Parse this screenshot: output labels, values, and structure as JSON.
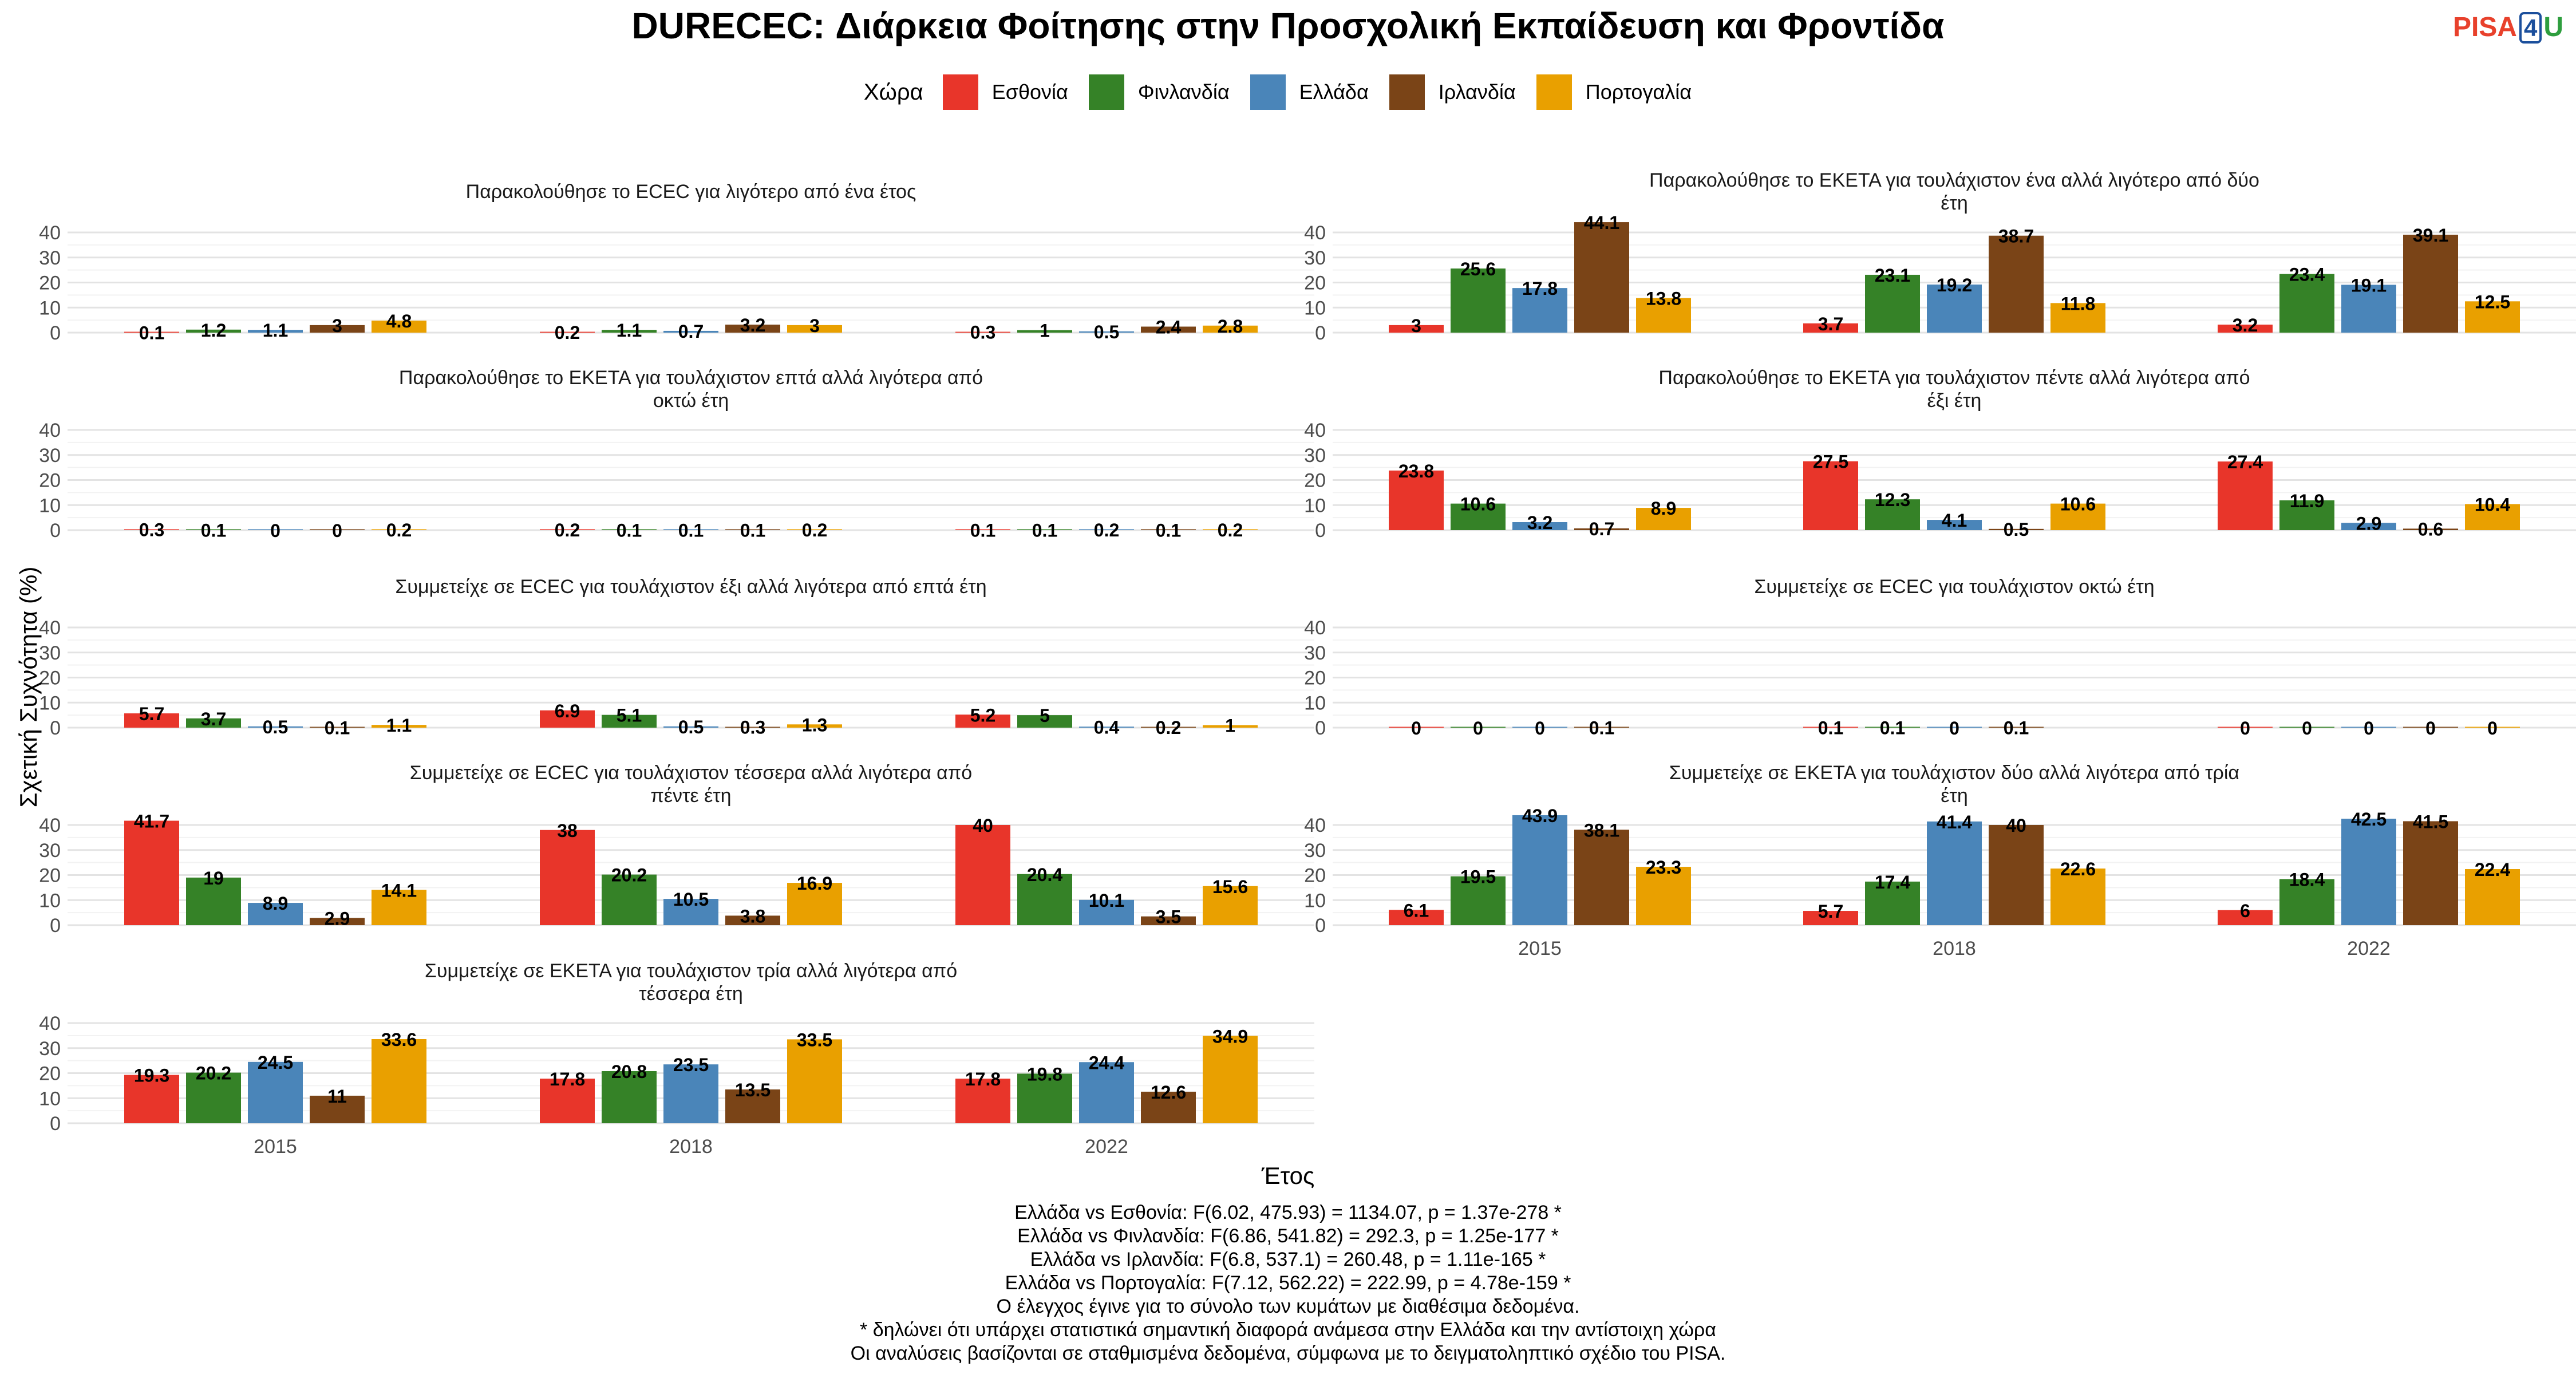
{
  "title": "DURECEC: Διάρκεια Φοίτησης στην Προσχολική Εκπαίδευση και Φροντίδα",
  "logo": {
    "part1": "PISA",
    "part2": "4",
    "part3": "U"
  },
  "legend_title": "Χώρα",
  "ylabel": "Σχετική Συχνότητα (%)",
  "xlabel": "Έτος",
  "notes": [
    "Ελλάδα vs Εσθονία: F(6.02, 475.93) = 1134.07, p = 1.37e-278 *",
    "Ελλάδα vs Φινλανδία: F(6.86, 541.82) = 292.3, p = 1.25e-177 *",
    "Ελλάδα vs Ιρλανδία: F(6.8, 537.1) = 260.48, p = 1.11e-165 *",
    "Ελλάδα vs Πορτογαλία: F(7.12, 562.22) = 222.99, p = 4.78e-159 *",
    "Ο έλεγχος έγινε για το σύνολο των κυμάτων με διαθέσιμα δεδομένα.",
    "* δηλώνει ότι υπάρχει στατιστικά σημαντική διαφορά ανάμεσα στην Ελλάδα και την αντίστοιχη χώρα",
    "Οι αναλύσεις βασίζονται σε σταθμισμένα δεδομένα, σύμφωνα με το δειγματοληπτικό σχέδιο του PISA."
  ],
  "chart_data": {
    "type": "bar",
    "years": [
      "2015",
      "2018",
      "2022"
    ],
    "y_ticks": [
      0,
      10,
      20,
      30,
      40
    ],
    "ylim": [
      0,
      45
    ],
    "series": [
      {
        "name": "Εσθονία",
        "color": "#e8352a"
      },
      {
        "name": "Φινλανδία",
        "color": "#358227"
      },
      {
        "name": "Ελλάδα",
        "color": "#4a85b9"
      },
      {
        "name": "Ιρλανδία",
        "color": "#7a4417"
      },
      {
        "name": "Πορτογαλία",
        "color": "#e9a000"
      }
    ],
    "panels": [
      {
        "title": [
          "Παρακολούθησε το ECEC για λιγότερο από ένα έτος"
        ],
        "values": [
          [
            0.1,
            1.2,
            1.1,
            3,
            4.8
          ],
          [
            0.2,
            1.1,
            0.7,
            3.2,
            3
          ],
          [
            0.3,
            1,
            0.5,
            2.4,
            2.8
          ]
        ]
      },
      {
        "title": [
          "Παρακολούθησε το ΕΚΕΤΑ για τουλάχιστον ένα αλλά λιγότερο από δύο",
          "έτη"
        ],
        "values": [
          [
            3,
            25.6,
            17.8,
            44.1,
            13.8
          ],
          [
            3.7,
            23.1,
            19.2,
            38.7,
            11.8
          ],
          [
            3.2,
            23.4,
            19.1,
            39.1,
            12.5
          ]
        ]
      },
      {
        "title": [
          "Παρακολούθησε το ΕΚΕΤΑ για τουλάχιστον επτά αλλά λιγότερα από",
          "οκτώ έτη"
        ],
        "values": [
          [
            0.3,
            0.1,
            0,
            0,
            0.2
          ],
          [
            0.2,
            0.1,
            0.1,
            0.1,
            0.2
          ],
          [
            0.1,
            0.1,
            0.2,
            0.1,
            0.2
          ]
        ]
      },
      {
        "title": [
          "Παρακολούθησε το ΕΚΕΤΑ για τουλάχιστον πέντε αλλά λιγότερα από",
          "έξι έτη"
        ],
        "values": [
          [
            23.8,
            10.6,
            3.2,
            0.7,
            8.9
          ],
          [
            27.5,
            12.3,
            4.1,
            0.5,
            10.6
          ],
          [
            27.4,
            11.9,
            2.9,
            0.6,
            10.4
          ]
        ]
      },
      {
        "title": [
          "Συμμετείχε σε ECEC για τουλάχιστον έξι αλλά λιγότερα από επτά έτη"
        ],
        "values": [
          [
            5.7,
            3.7,
            0.5,
            0.1,
            1.1
          ],
          [
            6.9,
            5.1,
            0.5,
            0.3,
            1.3
          ],
          [
            5.2,
            5,
            0.4,
            0.2,
            1
          ]
        ]
      },
      {
        "title": [
          "Συμμετείχε σε ECEC για τουλάχιστον οκτώ έτη"
        ],
        "values": [
          [
            0,
            0,
            0,
            0.1,
            null
          ],
          [
            0.1,
            0.1,
            0,
            0.1,
            null
          ],
          [
            0,
            0,
            0,
            0,
            0
          ]
        ]
      },
      {
        "title": [
          "Συμμετείχε σε ECEC για τουλάχιστον τέσσερα αλλά λιγότερα από",
          "πέντε έτη"
        ],
        "values": [
          [
            41.7,
            19,
            8.9,
            2.9,
            14.1
          ],
          [
            38,
            20.2,
            10.5,
            3.8,
            16.9
          ],
          [
            40,
            20.4,
            10.1,
            3.5,
            15.6
          ]
        ]
      },
      {
        "title": [
          "Συμμετείχε σε ΕΚΕΤΑ για τουλάχιστον δύο αλλά λιγότερα από τρία",
          "έτη"
        ],
        "values": [
          [
            6.1,
            19.5,
            43.9,
            38.1,
            23.3
          ],
          [
            5.7,
            17.4,
            41.4,
            40,
            22.6
          ],
          [
            6,
            18.4,
            42.5,
            41.5,
            22.4
          ]
        ]
      },
      {
        "title": [
          "Συμμετείχε σε ΕΚΕΤΑ για τουλάχιστον τρία αλλά λιγότερα από",
          "τέσσερα έτη"
        ],
        "values": [
          [
            19.3,
            20.2,
            24.5,
            11,
            33.6
          ],
          [
            17.8,
            20.8,
            23.5,
            13.5,
            33.5
          ],
          [
            17.8,
            19.8,
            24.4,
            12.6,
            34.9
          ]
        ]
      }
    ]
  }
}
